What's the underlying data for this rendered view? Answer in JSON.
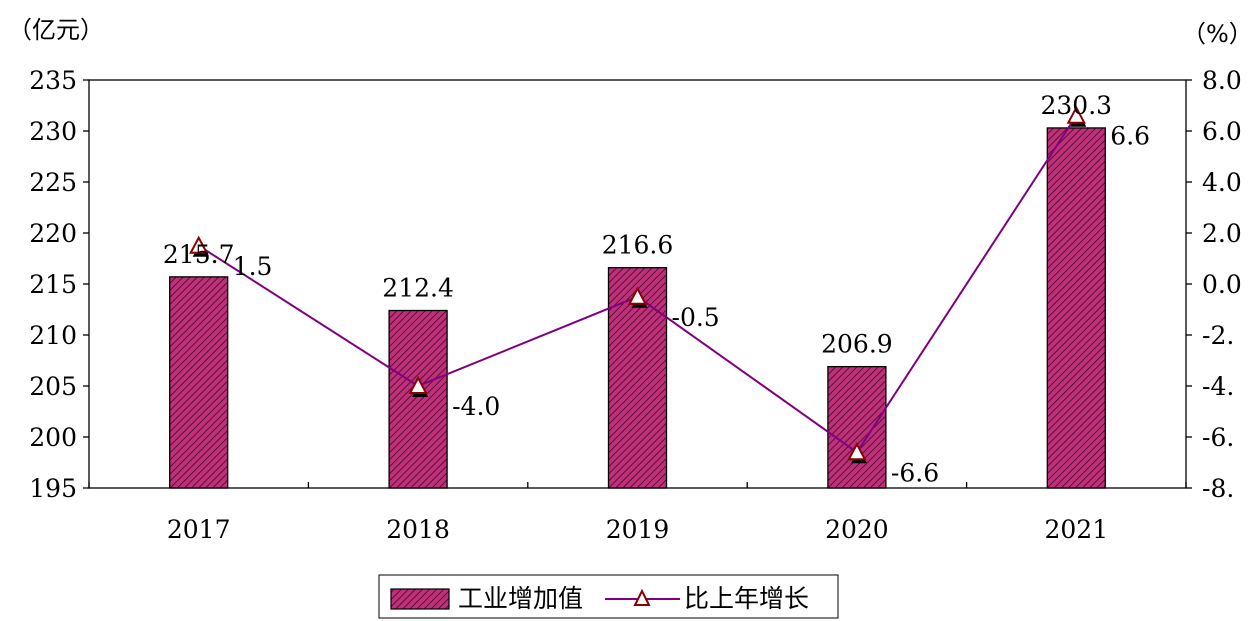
{
  "chart_data": {
    "type": "bar",
    "categories": [
      "2017",
      "2018",
      "2019",
      "2020",
      "2021"
    ],
    "left_unit": "（亿元）",
    "right_unit": "（%）",
    "ylim": [
      195,
      235
    ],
    "yticks": [
      "195",
      "200",
      "205",
      "210",
      "215",
      "220",
      "225",
      "230",
      "235"
    ],
    "y2lim": [
      -8,
      8
    ],
    "y2ticks": [
      "-8.",
      "-6.",
      "-4.",
      "-2.",
      "0.0",
      "2.0",
      "4.0",
      "6.0",
      "8.0"
    ],
    "series": [
      {
        "name": "工业增加值",
        "type": "bar",
        "axis": "left",
        "values": [
          215.7,
          212.4,
          216.6,
          206.9,
          230.3
        ],
        "labels": [
          "215.7",
          "212.4",
          "216.6",
          "206.9",
          "230.3"
        ],
        "color": "#c0307a"
      },
      {
        "name": "比上年增长",
        "type": "line",
        "axis": "right",
        "values": [
          1.5,
          -4.0,
          -0.5,
          -6.6,
          6.6
        ],
        "labels": [
          "1.5",
          "-4.0",
          "-0.5",
          "-6.6",
          "6.6"
        ],
        "color": "#800080",
        "marker_color": "#8b0000"
      }
    ],
    "grid": false,
    "legend_position": "bottom-center"
  }
}
